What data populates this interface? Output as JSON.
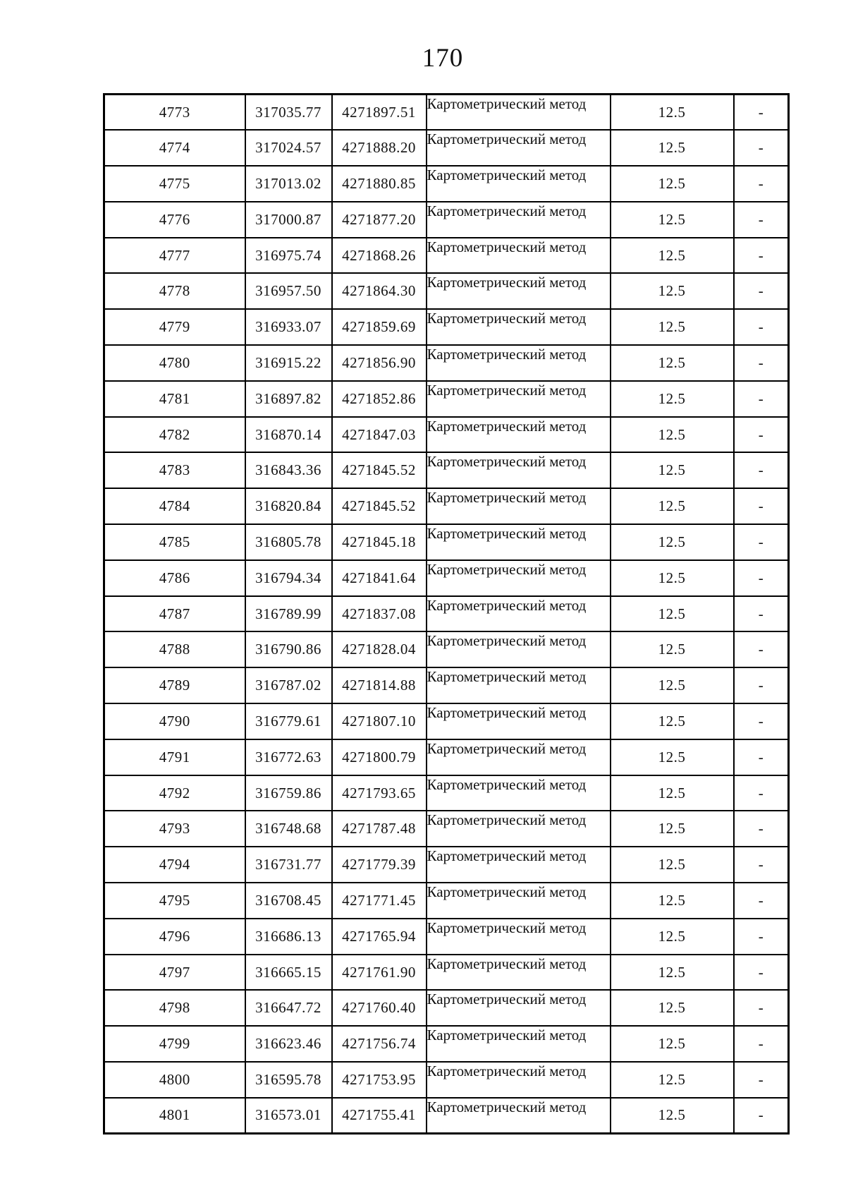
{
  "page_number": "170",
  "table": {
    "column_keys": [
      "point-number",
      "coordinate-x",
      "coordinate-y",
      "method",
      "precision",
      "note"
    ],
    "rows": [
      [
        "4773",
        "317035.77",
        "4271897.51",
        "Картометрический метод",
        "12.5",
        "-"
      ],
      [
        "4774",
        "317024.57",
        "4271888.20",
        "Картометрический метод",
        "12.5",
        "-"
      ],
      [
        "4775",
        "317013.02",
        "4271880.85",
        "Картометрический метод",
        "12.5",
        "-"
      ],
      [
        "4776",
        "317000.87",
        "4271877.20",
        "Картометрический метод",
        "12.5",
        "-"
      ],
      [
        "4777",
        "316975.74",
        "4271868.26",
        "Картометрический метод",
        "12.5",
        "-"
      ],
      [
        "4778",
        "316957.50",
        "4271864.30",
        "Картометрический метод",
        "12.5",
        "-"
      ],
      [
        "4779",
        "316933.07",
        "4271859.69",
        "Картометрический метод",
        "12.5",
        "-"
      ],
      [
        "4780",
        "316915.22",
        "4271856.90",
        "Картометрический метод",
        "12.5",
        "-"
      ],
      [
        "4781",
        "316897.82",
        "4271852.86",
        "Картометрический метод",
        "12.5",
        "-"
      ],
      [
        "4782",
        "316870.14",
        "4271847.03",
        "Картометрический метод",
        "12.5",
        "-"
      ],
      [
        "4783",
        "316843.36",
        "4271845.52",
        "Картометрический метод",
        "12.5",
        "-"
      ],
      [
        "4784",
        "316820.84",
        "4271845.52",
        "Картометрический метод",
        "12.5",
        "-"
      ],
      [
        "4785",
        "316805.78",
        "4271845.18",
        "Картометрический метод",
        "12.5",
        "-"
      ],
      [
        "4786",
        "316794.34",
        "4271841.64",
        "Картометрический метод",
        "12.5",
        "-"
      ],
      [
        "4787",
        "316789.99",
        "4271837.08",
        "Картометрический метод",
        "12.5",
        "-"
      ],
      [
        "4788",
        "316790.86",
        "4271828.04",
        "Картометрический метод",
        "12.5",
        "-"
      ],
      [
        "4789",
        "316787.02",
        "4271814.88",
        "Картометрический метод",
        "12.5",
        "-"
      ],
      [
        "4790",
        "316779.61",
        "4271807.10",
        "Картометрический метод",
        "12.5",
        "-"
      ],
      [
        "4791",
        "316772.63",
        "4271800.79",
        "Картометрический метод",
        "12.5",
        "-"
      ],
      [
        "4792",
        "316759.86",
        "4271793.65",
        "Картометрический метод",
        "12.5",
        "-"
      ],
      [
        "4793",
        "316748.68",
        "4271787.48",
        "Картометрический метод",
        "12.5",
        "-"
      ],
      [
        "4794",
        "316731.77",
        "4271779.39",
        "Картометрический метод",
        "12.5",
        "-"
      ],
      [
        "4795",
        "316708.45",
        "4271771.45",
        "Картометрический метод",
        "12.5",
        "-"
      ],
      [
        "4796",
        "316686.13",
        "4271765.94",
        "Картометрический метод",
        "12.5",
        "-"
      ],
      [
        "4797",
        "316665.15",
        "4271761.90",
        "Картометрический метод",
        "12.5",
        "-"
      ],
      [
        "4798",
        "316647.72",
        "4271760.40",
        "Картометрический метод",
        "12.5",
        "-"
      ],
      [
        "4799",
        "316623.46",
        "4271756.74",
        "Картометрический метод",
        "12.5",
        "-"
      ],
      [
        "4800",
        "316595.78",
        "4271753.95",
        "Картометрический метод",
        "12.5",
        "-"
      ],
      [
        "4801",
        "316573.01",
        "4271755.41",
        "Картометрический метод",
        "12.5",
        "-"
      ]
    ]
  }
}
